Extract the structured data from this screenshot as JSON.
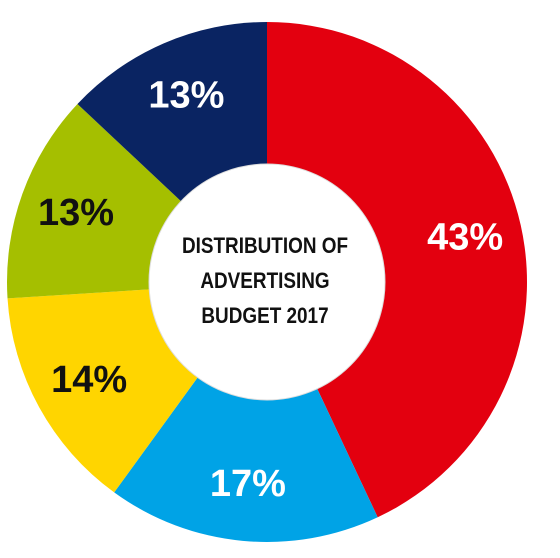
{
  "chart_data": {
    "type": "pie",
    "donut": true,
    "title_lines": [
      "DISTRIBUTION OF",
      "ADVERTISING",
      "BUDGET 2017"
    ],
    "slices": [
      {
        "label": "43%",
        "value": 43,
        "color": "#e3000f",
        "text_color": "#ffffff"
      },
      {
        "label": "17%",
        "value": 17,
        "color": "#00a3e6",
        "text_color": "#ffffff"
      },
      {
        "label": "14%",
        "value": 14,
        "color": "#ffd500",
        "text_color": "#111111"
      },
      {
        "label": "13%",
        "value": 13,
        "color": "#a5bf00",
        "text_color": "#111111"
      },
      {
        "label": "13%",
        "value": 13,
        "color": "#0a2462",
        "text_color": "#ffffff"
      }
    ]
  }
}
